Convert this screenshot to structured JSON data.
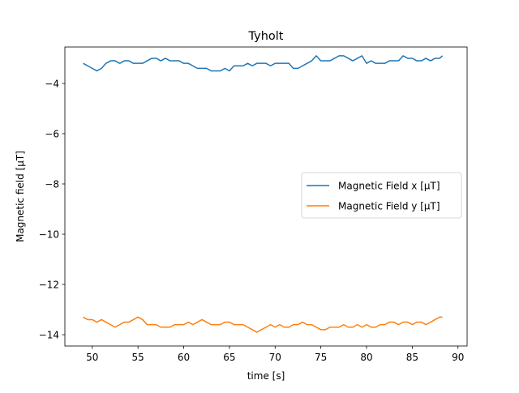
{
  "chart_data": {
    "type": "line",
    "title": "Tyholt",
    "xlabel": "time [s]",
    "ylabel": "Magnetic field [μT]",
    "xlim": [
      47.0,
      91.0
    ],
    "ylim": [
      -14.45,
      -2.55
    ],
    "xticks": [
      50,
      55,
      60,
      65,
      70,
      75,
      80,
      85,
      90
    ],
    "yticks": [
      -14,
      -12,
      -10,
      -8,
      -6,
      -4
    ],
    "xtick_labels": [
      "50",
      "55",
      "60",
      "65",
      "70",
      "75",
      "80",
      "85",
      "90"
    ],
    "ytick_labels": [
      "−14",
      "−12",
      "−10",
      "−8",
      "−6",
      "−4"
    ],
    "grid": false,
    "legend_position": "center-right",
    "series": [
      {
        "name": "Magnetic Field x [μT]",
        "color": "#1f77b4",
        "x": [
          49.0,
          49.5,
          50.0,
          50.5,
          51.0,
          51.5,
          52.0,
          52.5,
          53.0,
          53.5,
          54.0,
          54.5,
          55.0,
          55.5,
          56.0,
          56.5,
          57.0,
          57.5,
          58.0,
          58.5,
          59.0,
          59.5,
          60.0,
          60.5,
          61.0,
          61.5,
          62.0,
          62.5,
          63.0,
          63.5,
          64.0,
          64.5,
          65.0,
          65.5,
          66.0,
          66.5,
          67.0,
          67.5,
          68.0,
          68.5,
          69.0,
          69.5,
          70.0,
          70.5,
          71.0,
          71.5,
          72.0,
          72.5,
          73.0,
          73.5,
          74.0,
          74.5,
          75.0,
          75.5,
          76.0,
          76.5,
          77.0,
          77.5,
          78.0,
          78.5,
          79.0,
          79.5,
          80.0,
          80.5,
          81.0,
          81.5,
          82.0,
          82.5,
          83.0,
          83.5,
          84.0,
          84.5,
          85.0,
          85.5,
          86.0,
          86.5,
          87.0,
          87.5,
          88.0,
          88.3
        ],
        "y": [
          -3.2,
          -3.3,
          -3.4,
          -3.5,
          -3.4,
          -3.2,
          -3.1,
          -3.1,
          -3.2,
          -3.1,
          -3.1,
          -3.2,
          -3.2,
          -3.2,
          -3.1,
          -3.0,
          -3.0,
          -3.1,
          -3.0,
          -3.1,
          -3.1,
          -3.1,
          -3.2,
          -3.2,
          -3.3,
          -3.4,
          -3.4,
          -3.4,
          -3.5,
          -3.5,
          -3.5,
          -3.4,
          -3.5,
          -3.3,
          -3.3,
          -3.3,
          -3.2,
          -3.3,
          -3.2,
          -3.2,
          -3.2,
          -3.3,
          -3.2,
          -3.2,
          -3.2,
          -3.2,
          -3.4,
          -3.4,
          -3.3,
          -3.2,
          -3.1,
          -2.9,
          -3.1,
          -3.1,
          -3.1,
          -3.0,
          -2.9,
          -2.9,
          -3.0,
          -3.1,
          -3.0,
          -2.9,
          -3.2,
          -3.1,
          -3.2,
          -3.2,
          -3.2,
          -3.1,
          -3.1,
          -3.1,
          -2.9,
          -3.0,
          -3.0,
          -3.1,
          -3.1,
          -3.0,
          -3.1,
          -3.0,
          -3.0,
          -2.9
        ]
      },
      {
        "name": "Magnetic Field y [μT]",
        "color": "#ff7f0e",
        "x": [
          49.0,
          49.5,
          50.0,
          50.5,
          51.0,
          51.5,
          52.0,
          52.5,
          53.0,
          53.5,
          54.0,
          54.5,
          55.0,
          55.5,
          56.0,
          56.5,
          57.0,
          57.5,
          58.0,
          58.5,
          59.0,
          59.5,
          60.0,
          60.5,
          61.0,
          61.5,
          62.0,
          62.5,
          63.0,
          63.5,
          64.0,
          64.5,
          65.0,
          65.5,
          66.0,
          66.5,
          67.0,
          67.5,
          68.0,
          68.5,
          69.0,
          69.5,
          70.0,
          70.5,
          71.0,
          71.5,
          72.0,
          72.5,
          73.0,
          73.5,
          74.0,
          74.5,
          75.0,
          75.5,
          76.0,
          76.5,
          77.0,
          77.5,
          78.0,
          78.5,
          79.0,
          79.5,
          80.0,
          80.5,
          81.0,
          81.5,
          82.0,
          82.5,
          83.0,
          83.5,
          84.0,
          84.5,
          85.0,
          85.5,
          86.0,
          86.5,
          87.0,
          87.5,
          88.0,
          88.3
        ],
        "y": [
          -13.3,
          -13.4,
          -13.4,
          -13.5,
          -13.4,
          -13.5,
          -13.6,
          -13.7,
          -13.6,
          -13.5,
          -13.5,
          -13.4,
          -13.3,
          -13.4,
          -13.6,
          -13.6,
          -13.6,
          -13.7,
          -13.7,
          -13.7,
          -13.6,
          -13.6,
          -13.6,
          -13.5,
          -13.6,
          -13.5,
          -13.4,
          -13.5,
          -13.6,
          -13.6,
          -13.6,
          -13.5,
          -13.5,
          -13.6,
          -13.6,
          -13.6,
          -13.7,
          -13.8,
          -13.9,
          -13.8,
          -13.7,
          -13.6,
          -13.7,
          -13.6,
          -13.7,
          -13.7,
          -13.6,
          -13.6,
          -13.5,
          -13.6,
          -13.6,
          -13.7,
          -13.8,
          -13.8,
          -13.7,
          -13.7,
          -13.7,
          -13.6,
          -13.7,
          -13.7,
          -13.6,
          -13.7,
          -13.6,
          -13.7,
          -13.7,
          -13.6,
          -13.6,
          -13.5,
          -13.5,
          -13.6,
          -13.5,
          -13.5,
          -13.6,
          -13.5,
          -13.5,
          -13.6,
          -13.5,
          -13.4,
          -13.3,
          -13.3
        ]
      }
    ]
  }
}
